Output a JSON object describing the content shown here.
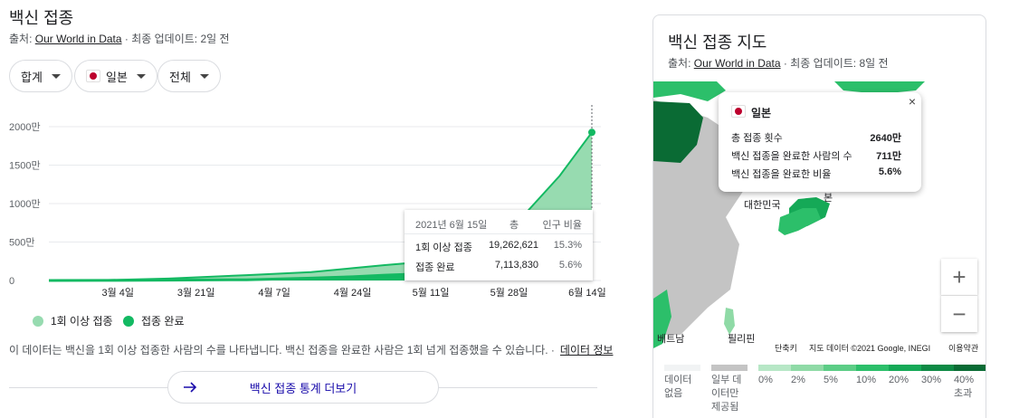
{
  "left": {
    "title": "백신 접종",
    "source_prefix": "출처: ",
    "source_link": "Our World in Data",
    "source_suffix": " · 최종 업데이트: 2일 전",
    "filters": [
      {
        "label": "합계"
      },
      {
        "label": "일본"
      },
      {
        "label": "전체"
      }
    ],
    "tooltip": {
      "date": "2021년 6월 15일",
      "col_total": "총",
      "col_ratio": "인구 비율",
      "row1_label": "1회 이상 접종",
      "row1_total": "19,262,621",
      "row1_ratio": "15.3%",
      "row2_label": "접종 완료",
      "row2_total": "7,113,830",
      "row2_ratio": "5.6%"
    },
    "legend": [
      {
        "label": "1회 이상 접종",
        "color": "#97dbb0"
      },
      {
        "label": "접종 완료",
        "color": "#13b962"
      }
    ],
    "note": "이 데이터는 백신을 1회 이상 접종한 사람의 수를 나타냅니다. 백신 접종을 완료한 사람은 1회 넘게 접종했을 수 있습니다.  ·",
    "note_link": "데이터 정보",
    "more_button": "백신 접종 통계 더보기"
  },
  "chart_data": {
    "type": "area",
    "title": "",
    "x": [
      "2021-02-17",
      "2021-03-01",
      "2021-03-15",
      "2021-04-01",
      "2021-04-15",
      "2021-04-24",
      "2021-05-01",
      "2021-05-11",
      "2021-05-18",
      "2021-05-25",
      "2021-06-01",
      "2021-06-08",
      "2021-06-15"
    ],
    "xtick_labels": [
      "3월 4일",
      "3월 21일",
      "4월 7일",
      "4월 24일",
      "5월 11일",
      "5월 28일",
      "6월 14일"
    ],
    "ytick_labels": [
      "0",
      "500만",
      "1000만",
      "1500만",
      "2000만"
    ],
    "ylim": [
      0,
      20000000
    ],
    "series": [
      {
        "name": "1회 이상 접종",
        "color": "#97dbb0",
        "values": [
          0,
          50000,
          250000,
          700000,
          1100000,
          1600000,
          2000000,
          2500000,
          3700000,
          6000000,
          9000000,
          13600000,
          19262621
        ]
      },
      {
        "name": "접종 완료",
        "color": "#13b962",
        "values": [
          0,
          10000,
          50000,
          90000,
          300000,
          480000,
          700000,
          900000,
          1200000,
          2000000,
          3500000,
          5200000,
          7113830
        ]
      }
    ],
    "highlight_index": 12,
    "grid": true
  },
  "map": {
    "title": "백신 접종 지도",
    "source_prefix": "출처: ",
    "source_link": "Our World in Data",
    "source_suffix": " · 최종 업데이트: 8일 전",
    "popup": {
      "country": "일본",
      "close": "×",
      "rows": [
        {
          "label": "총 접종 횟수",
          "value": "2640만"
        },
        {
          "label": "백신 접종을 완료한 사람의 수",
          "value": "711만"
        },
        {
          "label": "백신 접종을 완료한 비율",
          "value": "5.6%"
        }
      ]
    },
    "labels": {
      "korea": "대한민국",
      "japan_partial": "본",
      "vietnam": "베트남",
      "philippines": "필리핀"
    },
    "zoom_in": "+",
    "zoom_out": "−",
    "footer": {
      "shortcuts": "단축키",
      "map_data": "지도 데이터 ©2021 Google, INEGI",
      "terms": "이용약관"
    },
    "scale": [
      {
        "label": "데이터\n없음",
        "color": "#f1f3f4"
      },
      {
        "label": "일부 데\n이터만\n제공됨",
        "color": "#c4c4c4"
      },
      {
        "label": "0%",
        "color": "#b7e7c6"
      },
      {
        "label": "2%",
        "color": "#8fdaa6"
      },
      {
        "label": "5%",
        "color": "#5ccd86"
      },
      {
        "label": "10%",
        "color": "#2cbf6a"
      },
      {
        "label": "20%",
        "color": "#15a957"
      },
      {
        "label": "30%",
        "color": "#0e8a45"
      },
      {
        "label": "40%\n초과",
        "color": "#0a6b34"
      }
    ]
  }
}
